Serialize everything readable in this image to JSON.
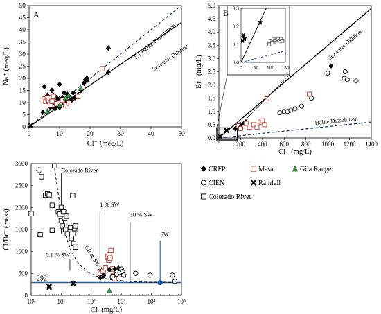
{
  "chart_data": [
    {
      "panel": "A",
      "type": "scatter",
      "xlabel": "Cl⁻ (meq/L)",
      "ylabel": "Na⁺ (meq/L)",
      "xlim": [
        0,
        50
      ],
      "ylim": [
        0,
        50
      ],
      "xticks": [
        0,
        10,
        20,
        30,
        40,
        50
      ],
      "yticks": [
        0,
        5,
        10,
        15,
        20,
        25,
        30,
        35,
        40,
        45,
        50
      ],
      "grid": false,
      "lines": [
        {
          "name": "1:1 Halite Dissolution",
          "style": "dashed",
          "color": "#1f3b63",
          "points": [
            [
              0,
              0
            ],
            [
              50,
              50
            ]
          ]
        },
        {
          "name": "Seawater Dilution",
          "style": "solid",
          "color": "#000000",
          "points": [
            [
              0,
              0
            ],
            [
              50,
              43
            ]
          ]
        }
      ],
      "series": [
        {
          "name": "CRFP",
          "marker": "diamond",
          "color": "#000000",
          "points": [
            [
              4.5,
              6
            ],
            [
              5,
              16.5
            ],
            [
              5.5,
              11
            ],
            [
              6,
              13
            ],
            [
              6.5,
              10
            ],
            [
              7,
              8
            ],
            [
              7,
              11.5
            ],
            [
              7.5,
              15
            ],
            [
              8,
              10
            ],
            [
              8,
              13
            ],
            [
              8.5,
              7.5
            ],
            [
              9,
              9
            ],
            [
              9,
              12
            ],
            [
              9.5,
              10.5
            ],
            [
              10,
              8
            ],
            [
              10,
              11.5
            ],
            [
              10,
              17.5
            ],
            [
              10.5,
              9.5
            ],
            [
              11,
              10
            ],
            [
              11,
              12
            ],
            [
              11.5,
              14
            ],
            [
              12,
              9
            ],
            [
              12,
              11
            ],
            [
              12.5,
              13.5
            ],
            [
              13,
              10.5
            ],
            [
              13.5,
              12
            ],
            [
              14,
              11
            ],
            [
              14.5,
              14
            ],
            [
              15,
              12
            ],
            [
              16,
              13
            ],
            [
              17,
              15
            ],
            [
              18,
              18
            ],
            [
              18.5,
              19.5
            ],
            [
              19,
              20
            ],
            [
              19,
              19
            ],
            [
              26,
              32.5
            ],
            [
              26,
              22.5
            ]
          ]
        },
        {
          "name": "Mesa",
          "marker": "square",
          "color": "#c0392b",
          "points": [
            [
              5,
              11.5
            ],
            [
              5.5,
              10.5
            ],
            [
              6,
              12
            ],
            [
              6.5,
              11
            ],
            [
              7,
              9
            ],
            [
              7,
              12
            ],
            [
              7.5,
              10.5
            ],
            [
              8,
              12.5
            ],
            [
              9,
              9.5
            ],
            [
              10,
              10
            ],
            [
              11,
              11
            ],
            [
              12,
              9
            ],
            [
              13,
              10
            ],
            [
              16,
              12.5
            ],
            [
              24,
              24
            ]
          ]
        },
        {
          "name": "Gila Range",
          "marker": "triangle",
          "color": "#3e8e41",
          "points": [
            [
              6,
              6.5
            ],
            [
              10,
              9
            ],
            [
              12,
              12
            ],
            [
              13,
              13
            ],
            [
              17,
              16
            ]
          ]
        },
        {
          "name": "Rainfall",
          "marker": "x",
          "color": "#000000",
          "points": [
            [
              0.5,
              0.5
            ]
          ]
        }
      ]
    },
    {
      "panel": "B",
      "type": "scatter",
      "xlabel": "Cl⁻ (mg/L)",
      "ylabel": "Br⁻ (mg/L)",
      "xlim": [
        0,
        1400
      ],
      "ylim": [
        0,
        5
      ],
      "xticks": [
        0,
        200,
        400,
        600,
        800,
        1000,
        1200,
        1400
      ],
      "yticks": [
        0,
        0.5,
        1,
        1.5,
        2,
        2.5,
        3,
        3.5,
        4,
        4.5,
        5
      ],
      "grid": false,
      "lines": [
        {
          "name": "Seawater Dilution",
          "style": "solid",
          "color": "#000000",
          "points": [
            [
              0,
              0
            ],
            [
              1400,
              4.89
            ]
          ]
        },
        {
          "name": "Halite Dissolution",
          "style": "dashed",
          "color": "#1f3b63",
          "points": [
            [
              0,
              0
            ],
            [
              1400,
              0.6
            ]
          ]
        }
      ],
      "series": [
        {
          "name": "CRFP",
          "marker": "diamond",
          "color": "#000000",
          "points": [
            [
              150,
              0.35
            ],
            [
              180,
              0.45
            ],
            [
              200,
              0.5
            ],
            [
              230,
              0.55
            ],
            [
              250,
              0.6
            ],
            [
              1030,
              2.72
            ]
          ]
        },
        {
          "name": "Mesa",
          "marker": "square",
          "color": "#c0392b",
          "points": [
            [
              180,
              0.45
            ],
            [
              200,
              0.35
            ],
            [
              250,
              0.55
            ],
            [
              280,
              0.4
            ],
            [
              320,
              0.5
            ],
            [
              350,
              0.4
            ],
            [
              380,
              0.6
            ],
            [
              400,
              0.65
            ],
            [
              420,
              0.5
            ],
            [
              440,
              1.48
            ],
            [
              830,
              1.65
            ]
          ]
        },
        {
          "name": "CIEN",
          "marker": "circle",
          "color": "#000000",
          "points": [
            [
              560,
              0.95
            ],
            [
              600,
              1.0
            ],
            [
              630,
              1.0
            ],
            [
              660,
              1.05
            ],
            [
              700,
              1.1
            ],
            [
              760,
              1.2
            ],
            [
              850,
              1.5
            ],
            [
              1000,
              2.45
            ],
            [
              1150,
              2.25
            ],
            [
              1160,
              2.5
            ],
            [
              1180,
              2.2
            ],
            [
              1260,
              2.15
            ]
          ]
        },
        {
          "name": "Rainfall",
          "marker": "x",
          "color": "#000000",
          "points": [
            [
              10,
              0.05
            ],
            [
              70,
              0.28
            ]
          ]
        }
      ],
      "inset": {
        "xlim": [
          0,
          150
        ],
        "ylim": [
          0,
          0.3
        ],
        "xticks": [
          0,
          50,
          100,
          150
        ],
        "yticks": [
          0,
          0.1,
          0.2,
          0.3
        ],
        "lines": [
          {
            "name": "Seawater Dilution",
            "style": "solid",
            "color": "#000000",
            "points": [
              [
                0,
                0
              ],
              [
                85,
                0.3
              ]
            ]
          },
          {
            "name": "Halite Dissolution",
            "style": "dashed",
            "color": "#1f3b63",
            "points": [
              [
                0,
                0
              ],
              [
                150,
                0.064
              ]
            ]
          }
        ],
        "series": [
          {
            "name": "Rainfall",
            "marker": "x",
            "color": "#000000",
            "points": [
              [
                5,
                0.12
              ],
              [
                8,
                0.15
              ],
              [
                12,
                0.13
              ],
              [
                65,
                0.22
              ]
            ]
          },
          {
            "name": "CIEN",
            "marker": "square",
            "color": "#555555",
            "points": [
              [
                95,
                0.1
              ],
              [
                100,
                0.12
              ],
              [
                105,
                0.11
              ],
              [
                110,
                0.13
              ],
              [
                115,
                0.12
              ],
              [
                120,
                0.11
              ],
              [
                125,
                0.13
              ],
              [
                130,
                0.12
              ],
              [
                135,
                0.13
              ],
              [
                140,
                0.12
              ]
            ]
          }
        ]
      },
      "annotations": [
        "Seawater Dilution",
        "Halite Dissolution"
      ]
    },
    {
      "panel": "C",
      "type": "scatter",
      "xscale": "log",
      "xlabel": "Cl⁻(mg/L)",
      "ylabel": "Cl/Br⁻ (mass)",
      "xlim": [
        1,
        100000
      ],
      "ylim": [
        0,
        3000
      ],
      "xtick_labels": [
        "10⁰",
        "10¹",
        "10²",
        "10³",
        "10⁴",
        "10⁵"
      ],
      "yticks": [
        0,
        500,
        1000,
        1500,
        2000,
        2500,
        3000
      ],
      "grid": false,
      "hline": {
        "value": 292,
        "label": "292",
        "color": "#1f5fa8"
      },
      "annotations": [
        {
          "text": "Colorado River",
          "x": 10,
          "y": 2800
        },
        {
          "text": "1 % SW",
          "x": 195,
          "y": 2020
        },
        {
          "text": "10 % SW",
          "x": 1950,
          "y": 1790
        },
        {
          "text": "SW",
          "x": 19500,
          "y": 1350
        },
        {
          "text": "0.1 % SW",
          "x": 19.5,
          "y": 880
        },
        {
          "text": "CR & SW Mix",
          "x": 60,
          "y": 1100
        }
      ],
      "series": [
        {
          "name": "Colorado River",
          "marker": "square",
          "color": "#000000",
          "points": [
            [
              1,
              1860
            ],
            [
              2,
              1380
            ],
            [
              2.2,
              2700
            ],
            [
              3,
              2280
            ],
            [
              3.5,
              2310
            ],
            [
              4,
              2290
            ],
            [
              5,
              2050
            ],
            [
              5,
              1480
            ],
            [
              6,
              2950
            ],
            [
              8,
              1900
            ],
            [
              9,
              1850
            ],
            [
              10,
              2000
            ],
            [
              10,
              1700
            ],
            [
              11,
              1580
            ],
            [
              12,
              1450
            ],
            [
              12,
              1900
            ],
            [
              13,
              1750
            ],
            [
              14,
              1500
            ],
            [
              15,
              1800
            ],
            [
              16,
              1400
            ],
            [
              18,
              1600
            ],
            [
              20,
              1540
            ],
            [
              22,
              1300
            ],
            [
              24,
              2270
            ],
            [
              25,
              1400
            ],
            [
              26,
              1180
            ],
            [
              28,
              1520
            ],
            [
              30,
              1100
            ],
            [
              30,
              1580
            ]
          ]
        },
        {
          "name": "Mesa",
          "marker": "square",
          "color": "#c0392b",
          "points": [
            [
              200,
              500
            ],
            [
              250,
              550
            ],
            [
              300,
              620
            ],
            [
              350,
              870
            ],
            [
              380,
              800
            ],
            [
              400,
              920
            ],
            [
              420,
              850
            ],
            [
              450,
              1020
            ],
            [
              500,
              600
            ],
            [
              550,
              450
            ],
            [
              600,
              380
            ]
          ]
        },
        {
          "name": "CRFP",
          "marker": "diamond",
          "color": "#000000",
          "points": [
            [
              200,
              400
            ],
            [
              260,
              450
            ],
            [
              400,
              580
            ],
            [
              600,
              600
            ],
            [
              800,
              620
            ],
            [
              900,
              520
            ],
            [
              1000,
              560
            ]
          ]
        },
        {
          "name": "CIEN",
          "marker": "circle",
          "color": "#000000",
          "points": [
            [
              500,
              420
            ],
            [
              700,
              480
            ],
            [
              900,
              520
            ],
            [
              1000,
              600
            ],
            [
              1100,
              540
            ],
            [
              1200,
              460
            ],
            [
              3000,
              500
            ],
            [
              9000,
              460
            ],
            [
              50000,
              460
            ],
            [
              60000,
              320
            ]
          ]
        },
        {
          "name": "Gila Range",
          "marker": "triangle",
          "color": "#3e8e41",
          "points": [
            [
              400,
              110
            ]
          ]
        },
        {
          "name": "Rainfall",
          "marker": "x",
          "color": "#000000",
          "points": [
            [
              4,
              180
            ],
            [
              4,
              210
            ],
            [
              25,
              270
            ]
          ]
        },
        {
          "name": "SW",
          "marker": "circle",
          "color": "#1f5fa8",
          "points": [
            [
              19500,
              292
            ]
          ]
        }
      ]
    }
  ],
  "legend": {
    "items": [
      {
        "label": "CRFP",
        "marker": "diamond",
        "color": "#000000"
      },
      {
        "label": "Mesa",
        "marker": "square",
        "color": "#c0392b"
      },
      {
        "label": "Gila Range",
        "marker": "triangle",
        "color": "#3e8e41"
      },
      {
        "label": "CIEN",
        "marker": "circle",
        "color": "#000000"
      },
      {
        "label": "Rainfall",
        "marker": "x",
        "color": "#000000"
      },
      {
        "label": "Colorado River",
        "marker": "square",
        "color": "#000000"
      }
    ]
  },
  "panel_letters": {
    "a": "A",
    "b": "B",
    "c": "C"
  }
}
